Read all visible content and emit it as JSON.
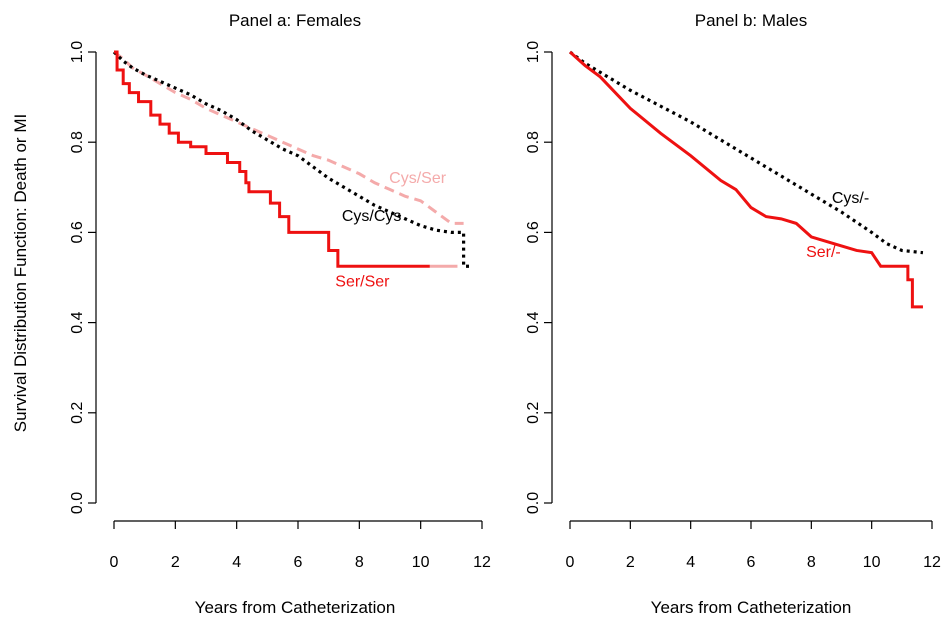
{
  "chart_data": [
    {
      "type": "line",
      "title": "Panel a: Females",
      "xlabel": "Years from Catheterization",
      "ylabel": "Survival Distribution Function: Death or MI",
      "xlim": [
        0,
        12
      ],
      "ylim": [
        0,
        1
      ],
      "xticks": [
        0,
        2,
        4,
        6,
        8,
        10,
        12
      ],
      "yticks": [
        0.0,
        0.2,
        0.4,
        0.6,
        0.8,
        1.0
      ],
      "xtick_labels": [
        "0",
        "2",
        "4",
        "6",
        "8",
        "10",
        "12"
      ],
      "ytick_labels": [
        "0.0",
        "0.2",
        "0.4",
        "0.6",
        "0.8",
        "1.0"
      ],
      "grid": false,
      "legend": "none",
      "series": [
        {
          "name": "Cys/Ser",
          "color": "#f4aaaa",
          "dash": "dashed",
          "step": false,
          "points": [
            [
              0,
              1.0
            ],
            [
              0.3,
              0.985
            ],
            [
              0.6,
              0.965
            ],
            [
              1,
              0.95
            ],
            [
              1.5,
              0.93
            ],
            [
              2,
              0.91
            ],
            [
              2.5,
              0.895
            ],
            [
              3,
              0.875
            ],
            [
              3.5,
              0.86
            ],
            [
              4,
              0.845
            ],
            [
              4.5,
              0.83
            ],
            [
              5,
              0.815
            ],
            [
              5.5,
              0.8
            ],
            [
              6,
              0.785
            ],
            [
              6.5,
              0.77
            ],
            [
              7,
              0.76
            ],
            [
              7.5,
              0.745
            ],
            [
              8,
              0.73
            ],
            [
              8.5,
              0.71
            ],
            [
              9,
              0.695
            ],
            [
              9.5,
              0.68
            ],
            [
              10,
              0.67
            ],
            [
              10.5,
              0.645
            ],
            [
              11,
              0.62
            ],
            [
              11.4,
              0.62
            ]
          ]
        },
        {
          "name": "Cys/Cys",
          "color": "#000000",
          "dash": "dotted",
          "step": false,
          "points": [
            [
              0,
              1.0
            ],
            [
              0.3,
              0.98
            ],
            [
              0.6,
              0.965
            ],
            [
              1,
              0.95
            ],
            [
              1.5,
              0.935
            ],
            [
              2,
              0.92
            ],
            [
              2.5,
              0.905
            ],
            [
              3,
              0.885
            ],
            [
              3.5,
              0.87
            ],
            [
              4,
              0.85
            ],
            [
              4.5,
              0.825
            ],
            [
              5,
              0.805
            ],
            [
              5.5,
              0.785
            ],
            [
              6,
              0.77
            ],
            [
              6.5,
              0.745
            ],
            [
              7,
              0.72
            ],
            [
              7.5,
              0.7
            ],
            [
              8,
              0.68
            ],
            [
              8.5,
              0.66
            ],
            [
              9,
              0.645
            ],
            [
              9.5,
              0.63
            ],
            [
              10,
              0.615
            ],
            [
              10.5,
              0.605
            ],
            [
              11,
              0.6
            ],
            [
              11.4,
              0.6
            ],
            [
              11.4,
              0.525
            ],
            [
              11.6,
              0.525
            ]
          ]
        },
        {
          "name": "Ser/Ser",
          "color": "#ee1111",
          "dash": "solid",
          "step": true,
          "points": [
            [
              0,
              1.0
            ],
            [
              0.1,
              0.96
            ],
            [
              0.3,
              0.93
            ],
            [
              0.5,
              0.91
            ],
            [
              0.8,
              0.89
            ],
            [
              1.2,
              0.86
            ],
            [
              1.5,
              0.84
            ],
            [
              1.8,
              0.82
            ],
            [
              2.1,
              0.8
            ],
            [
              2.5,
              0.79
            ],
            [
              3.0,
              0.775
            ],
            [
              3.7,
              0.755
            ],
            [
              4.1,
              0.735
            ],
            [
              4.3,
              0.71
            ],
            [
              4.4,
              0.69
            ],
            [
              5.1,
              0.665
            ],
            [
              5.4,
              0.635
            ],
            [
              5.7,
              0.6
            ],
            [
              7.0,
              0.56
            ],
            [
              7.3,
              0.525
            ],
            [
              10.3,
              0.525
            ]
          ]
        },
        {
          "name": "Ser/Ser tail",
          "color": "#f4aaaa",
          "dash": "solid",
          "step": false,
          "points": [
            [
              10.3,
              0.525
            ],
            [
              11.2,
              0.525
            ]
          ]
        }
      ],
      "labels": [
        {
          "text": "Cys/Ser",
          "color": "#f4aaaa",
          "x": 9.9,
          "y": 0.71
        },
        {
          "text": "Cys/Cys",
          "color": "#000000",
          "x": 8.4,
          "y": 0.625
        },
        {
          "text": "Ser/Ser",
          "color": "#ee1111",
          "x": 8.1,
          "y": 0.48
        }
      ]
    },
    {
      "type": "line",
      "title": "Panel b: Males",
      "xlabel": "Years from Catheterization",
      "ylabel": "",
      "xlim": [
        0,
        12
      ],
      "ylim": [
        0,
        1
      ],
      "xticks": [
        0,
        2,
        4,
        6,
        8,
        10,
        12
      ],
      "yticks": [
        0.0,
        0.2,
        0.4,
        0.6,
        0.8,
        1.0
      ],
      "xtick_labels": [
        "0",
        "2",
        "4",
        "6",
        "8",
        "10",
        "12"
      ],
      "ytick_labels": [
        "0.0",
        "0.2",
        "0.4",
        "0.6",
        "0.8",
        "1.0"
      ],
      "grid": false,
      "legend": "none",
      "series": [
        {
          "name": "Cys/-",
          "color": "#000000",
          "dash": "dotted",
          "step": false,
          "points": [
            [
              0,
              1.0
            ],
            [
              0.5,
              0.975
            ],
            [
              1,
              0.955
            ],
            [
              2,
              0.915
            ],
            [
              3,
              0.88
            ],
            [
              4,
              0.845
            ],
            [
              5,
              0.805
            ],
            [
              6,
              0.765
            ],
            [
              7,
              0.725
            ],
            [
              8,
              0.685
            ],
            [
              9,
              0.645
            ],
            [
              10,
              0.6
            ],
            [
              10.5,
              0.575
            ],
            [
              11,
              0.56
            ],
            [
              11.7,
              0.555
            ]
          ]
        },
        {
          "name": "Ser/-",
          "color": "#ee1111",
          "dash": "solid",
          "step": false,
          "points": [
            [
              0,
              1.0
            ],
            [
              0.5,
              0.97
            ],
            [
              1,
              0.945
            ],
            [
              2,
              0.875
            ],
            [
              3,
              0.82
            ],
            [
              4,
              0.77
            ],
            [
              5,
              0.715
            ],
            [
              5.5,
              0.695
            ],
            [
              6,
              0.655
            ],
            [
              6.5,
              0.635
            ],
            [
              7,
              0.63
            ],
            [
              7.5,
              0.62
            ],
            [
              8,
              0.59
            ],
            [
              8.5,
              0.58
            ],
            [
              9,
              0.57
            ],
            [
              9.5,
              0.56
            ],
            [
              10,
              0.555
            ],
            [
              10.3,
              0.525
            ],
            [
              11.2,
              0.525
            ],
            [
              11.2,
              0.495
            ],
            [
              11.35,
              0.495
            ],
            [
              11.35,
              0.435
            ],
            [
              11.7,
              0.435
            ]
          ]
        }
      ],
      "labels": [
        {
          "text": "Cys/-",
          "color": "#000000",
          "x": 9.3,
          "y": 0.665
        },
        {
          "text": "Ser/-",
          "color": "#ee1111",
          "x": 8.4,
          "y": 0.545
        }
      ]
    }
  ]
}
